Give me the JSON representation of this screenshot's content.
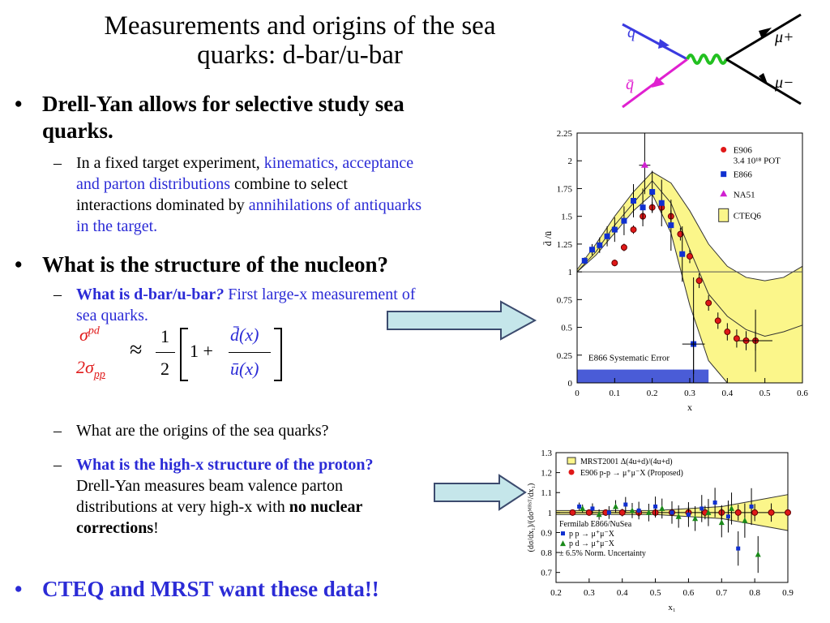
{
  "slide": {
    "title_line1": "Measurements and origins of the sea",
    "title_line2": "quarks:  d-bar/u-bar",
    "bullets": [
      {
        "text_a": "Drell-Yan allows for selective study sea",
        "text_b": "quarks."
      },
      {
        "text": "What is the structure of the nucleon?"
      },
      {
        "text": "CTEQ and MRST want these data!!"
      }
    ],
    "sub1": {
      "p1": "In a fixed target experiment, ",
      "p2": "kinematics, acceptance",
      "p3": "and parton distributions",
      "p4": " combine to select",
      "p5": "interactions dominated by ",
      "p6": "annihilations of antiquarks",
      "p7": "in the target."
    },
    "sub2": {
      "q": "What is d-bar/u-bar",
      "qmark": "?",
      "rest": "  First large-x measurement of",
      "rest2": "sea quarks."
    },
    "formula": {
      "num": "σ",
      "num_sup": "pd",
      "den": "2σ",
      "den_sub": "pp",
      "approx": "≈",
      "half_num": "1",
      "half_den": "2",
      "one_plus": "1 +",
      "dbar": "d̄(x)",
      "ubar": "ū(x)"
    },
    "sub3": "What are the origins of the sea quarks?",
    "sub4": {
      "q": "What is the high-x structure of the proton?",
      "l2": "Drell-Yan measures beam valence parton",
      "l3a": "distributions at very high-x with ",
      "l3b": "no nuclear",
      "l4a": "corrections",
      "l4b": "!"
    },
    "feynman": {
      "q": "q",
      "qbar": "q̄",
      "mu_plus": "μ+",
      "mu_minus": "μ−"
    }
  },
  "chart_data": [
    {
      "type": "scatter",
      "title": "",
      "xlabel": "x",
      "ylabel": "d̄ /ū",
      "xlim": [
        0,
        0.6
      ],
      "ylim": [
        0,
        2.25
      ],
      "xticks": [
        "0",
        "0.1",
        "0.2",
        "0.3",
        "0.4",
        "0.5",
        "0.6"
      ],
      "yticks": [
        "0",
        "0.25",
        "0.5",
        "0.75",
        "1",
        "1.25",
        "1.5",
        "1.75",
        "2",
        "2.25"
      ],
      "legend": [
        "E906",
        "3.4 10¹⁸ POT",
        "E866",
        "NA51",
        "CTEQ6"
      ],
      "annotation": "E866 Systematic Error",
      "series": [
        {
          "name": "E906",
          "x": [
            0.1,
            0.125,
            0.15,
            0.175,
            0.2,
            0.225,
            0.25,
            0.275,
            0.3,
            0.325,
            0.35,
            0.375,
            0.4,
            0.425,
            0.45,
            0.475
          ],
          "y": [
            1.08,
            1.22,
            1.38,
            1.5,
            1.58,
            1.58,
            1.5,
            1.34,
            1.14,
            0.92,
            0.72,
            0.56,
            0.46,
            0.4,
            0.38,
            0.38
          ]
        },
        {
          "name": "E866",
          "x": [
            0.02,
            0.04,
            0.06,
            0.08,
            0.1,
            0.125,
            0.15,
            0.175,
            0.2,
            0.225,
            0.25,
            0.28,
            0.31
          ],
          "y": [
            1.1,
            1.2,
            1.24,
            1.32,
            1.38,
            1.46,
            1.64,
            1.58,
            1.72,
            1.62,
            1.42,
            1.16,
            0.35
          ]
        },
        {
          "name": "NA51",
          "x": [
            0.18
          ],
          "y": [
            1.96
          ]
        }
      ],
      "cteq6_band": {
        "x": [
          0,
          0.05,
          0.1,
          0.15,
          0.2,
          0.25,
          0.3,
          0.35,
          0.4,
          0.45,
          0.5,
          0.55,
          0.6
        ],
        "lo": [
          1.0,
          1.15,
          1.35,
          1.55,
          1.7,
          1.35,
          0.7,
          0.2,
          0.0,
          0.0,
          0.0,
          0.0,
          0.0
        ],
        "hi": [
          1.02,
          1.25,
          1.5,
          1.72,
          1.9,
          1.8,
          1.55,
          1.25,
          1.05,
          0.95,
          0.92,
          0.95,
          1.05
        ],
        "mid": [
          1.0,
          1.18,
          1.42,
          1.62,
          1.82,
          1.62,
          1.2,
          0.8,
          0.6,
          0.48,
          0.42,
          0.46,
          0.52
        ]
      }
    },
    {
      "type": "scatter",
      "title": "",
      "xlabel": "x₁",
      "ylabel": "(dσ/dx₁)/(dσᴹᴿˢᵀ/dx₁)",
      "xlim": [
        0.2,
        0.9
      ],
      "ylim": [
        0.65,
        1.3
      ],
      "xticks": [
        "0.2",
        "0.3",
        "0.4",
        "0.5",
        "0.6",
        "0.7",
        "0.8",
        "0.9"
      ],
      "yticks": [
        "0.7",
        "0.8",
        "0.9",
        "1",
        "1.1",
        "1.2",
        "1.3"
      ],
      "legend": [
        "MRST2001 Δ(4u+d)/(4u+d)",
        "E906 p-p → μ⁺μ⁻X (Proposed)"
      ],
      "annotation_lines": [
        "Fermilab E866/NuSea",
        "p p → μ⁺μ⁻X",
        "p d → μ⁺μ⁻X",
        "± 6.5% Norm. Uncertainty"
      ],
      "series": [
        {
          "name": "E906 p-p → μ⁺μ⁻X (Proposed)",
          "x": [
            0.25,
            0.3,
            0.35,
            0.4,
            0.45,
            0.5,
            0.55,
            0.6,
            0.65,
            0.7,
            0.75,
            0.8,
            0.85,
            0.9
          ],
          "y": [
            1.0,
            1.0,
            1.0,
            1.0,
            1.0,
            1.0,
            1.0,
            1.0,
            1.0,
            1.0,
            1.0,
            1.0,
            1.0,
            1.0
          ]
        },
        {
          "name": "p p → μ⁺μ⁻X",
          "x": [
            0.27,
            0.31,
            0.36,
            0.41,
            0.45,
            0.5,
            0.55,
            0.6,
            0.64,
            0.68,
            0.72,
            0.75,
            0.79
          ],
          "y": [
            1.03,
            1.02,
            1.0,
            1.04,
            1.01,
            1.03,
            1.0,
            0.99,
            1.02,
            1.05,
            0.98,
            0.82,
            1.03
          ]
        },
        {
          "name": "p d → μ⁺μ⁻X",
          "x": [
            0.28,
            0.33,
            0.38,
            0.43,
            0.48,
            0.52,
            0.57,
            0.62,
            0.66,
            0.7,
            0.73,
            0.77,
            0.81
          ],
          "y": [
            1.02,
            0.99,
            1.03,
            1.01,
            1.0,
            1.02,
            0.98,
            0.97,
            1.0,
            0.95,
            1.02,
            0.96,
            0.79
          ]
        }
      ]
    }
  ]
}
